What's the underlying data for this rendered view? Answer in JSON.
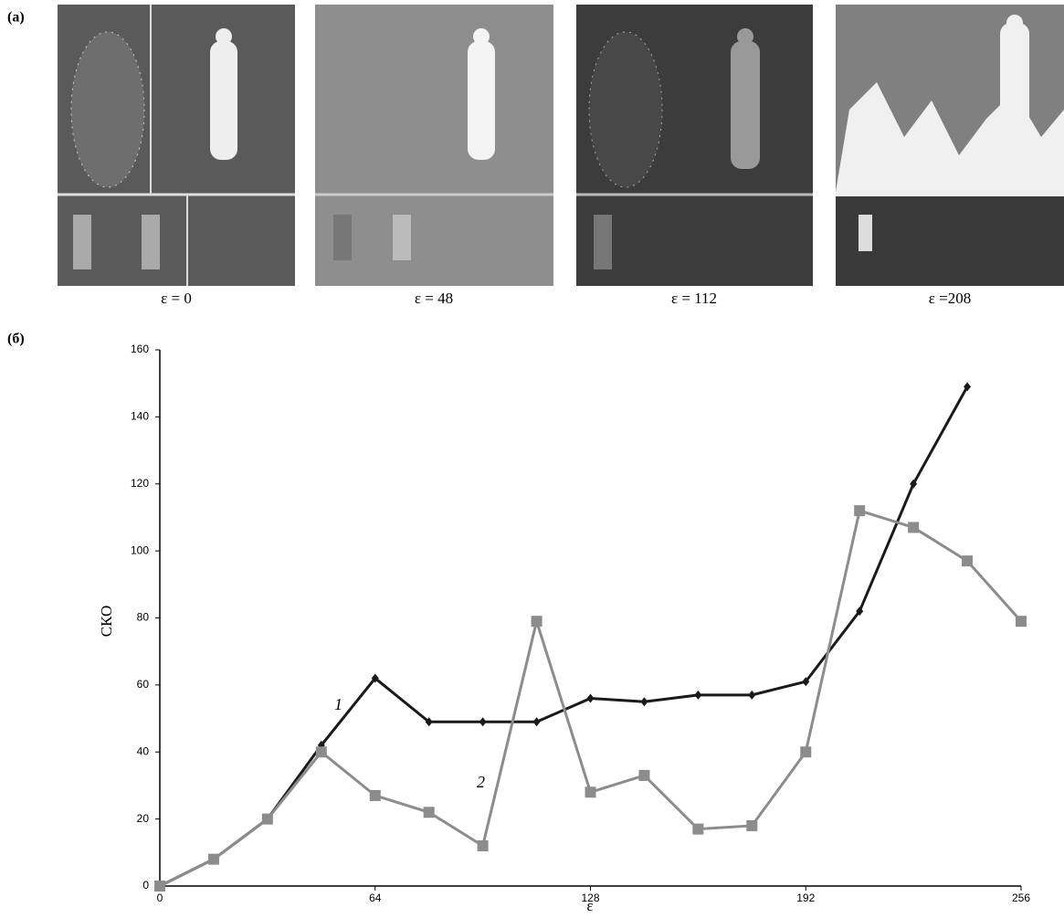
{
  "panel_labels": [
    "(а)",
    "(б)"
  ],
  "images": [
    {
      "caption": "ε = 0"
    },
    {
      "caption": "ε = 48"
    },
    {
      "caption": "ε = 112"
    },
    {
      "caption": "ε =208"
    }
  ],
  "chart_data": {
    "type": "line",
    "x_label": "ε",
    "y_label": "СКО",
    "x": [
      0,
      16,
      32,
      48,
      64,
      80,
      96,
      112,
      128,
      144,
      160,
      176,
      192,
      208,
      224,
      240,
      256
    ],
    "series": [
      {
        "name": "1",
        "color": "#1a1a1a",
        "marker": "diamond",
        "values": [
          0,
          8,
          20,
          42,
          62,
          49,
          49,
          49,
          56,
          55,
          57,
          57,
          61,
          82,
          120,
          149,
          null
        ]
      },
      {
        "name": "2",
        "color": "#8c8c8c",
        "marker": "square",
        "values": [
          0,
          8,
          20,
          40,
          27,
          22,
          12,
          79,
          28,
          33,
          17,
          18,
          40,
          112,
          107,
          97,
          79
        ]
      }
    ],
    "xlim": [
      0,
      256
    ],
    "xticks": [
      0,
      64,
      128,
      192,
      256
    ],
    "ylim": [
      0,
      160
    ],
    "yticks": [
      0,
      20,
      40,
      60,
      80,
      100,
      120,
      140,
      160
    ],
    "grid": false
  }
}
